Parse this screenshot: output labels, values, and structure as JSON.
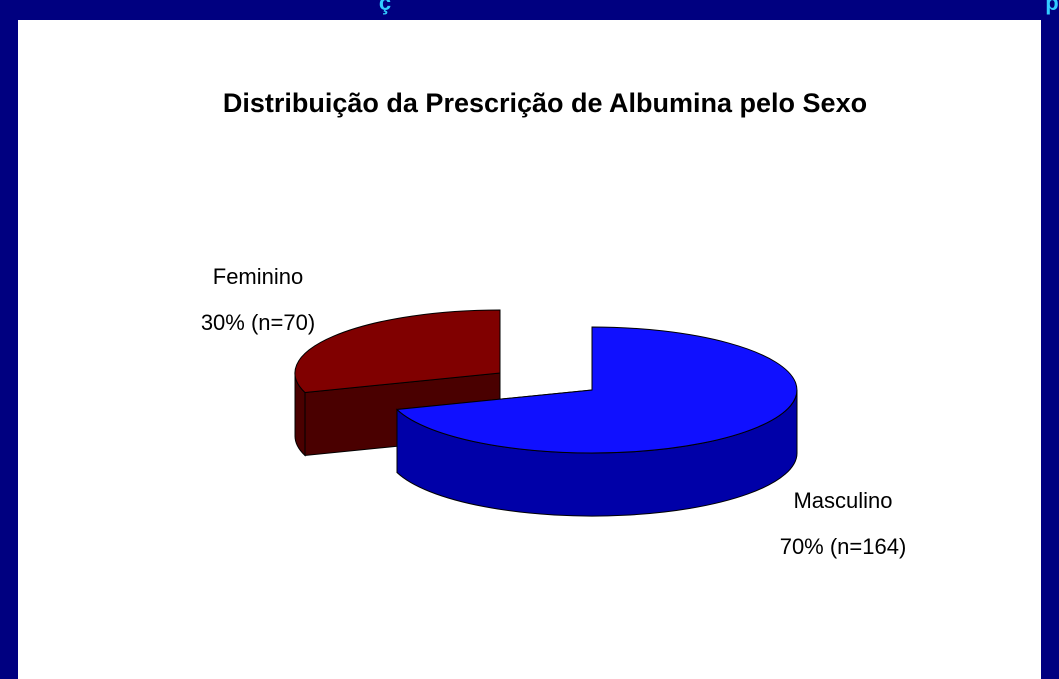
{
  "header": {
    "fragments": [
      "ç",
      "p"
    ]
  },
  "chart_data": {
    "type": "pie",
    "title": "Distribuição da Prescrição de Albumina pelo Sexo",
    "categories": [
      "Masculino",
      "Feminino"
    ],
    "values": [
      70,
      30
    ],
    "value_labels": [
      "70% (n=164)",
      "30% (n=70)"
    ],
    "colors": [
      "#1010ff",
      "#800000"
    ],
    "side_colors": [
      "#0000a8",
      "#4a0000"
    ]
  }
}
